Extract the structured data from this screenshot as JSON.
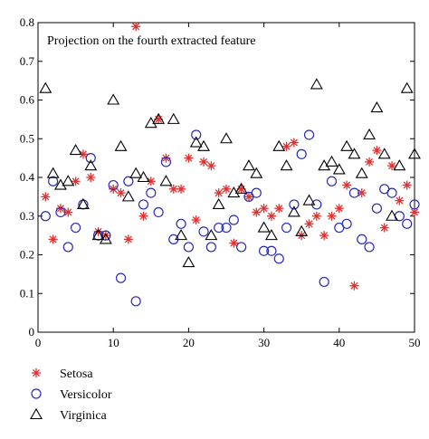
{
  "chart_data": {
    "type": "scatter",
    "title": "Projection on the fourth extracted feature",
    "xlabel": "",
    "ylabel": "",
    "xlim": [
      0,
      50
    ],
    "ylim": [
      0,
      0.8
    ],
    "x_ticks": [
      0,
      10,
      20,
      30,
      40,
      50
    ],
    "y_ticks": [
      0,
      0.1,
      0.2,
      0.3,
      0.4,
      0.5,
      0.6,
      0.7,
      0.8
    ],
    "grid": false,
    "legend_position": "bottom-left, below plot",
    "series": [
      {
        "name": "Setosa",
        "marker": "asterisk",
        "color": "#e03030",
        "x": [
          1,
          2,
          3,
          4,
          5,
          6,
          7,
          8,
          9,
          10,
          11,
          12,
          13,
          14,
          15,
          16,
          17,
          18,
          19,
          20,
          21,
          22,
          23,
          24,
          25,
          26,
          27,
          28,
          29,
          30,
          31,
          32,
          33,
          34,
          35,
          36,
          37,
          38,
          39,
          40,
          41,
          42,
          43,
          44,
          45,
          46,
          47,
          48,
          49,
          50
        ],
        "y": [
          0.35,
          0.24,
          0.32,
          0.31,
          0.39,
          0.46,
          0.4,
          0.26,
          0.25,
          0.37,
          0.36,
          0.24,
          0.79,
          0.3,
          0.39,
          0.55,
          0.45,
          0.37,
          0.37,
          0.45,
          0.29,
          0.44,
          0.43,
          0.36,
          0.37,
          0.23,
          0.37,
          0.35,
          0.31,
          0.32,
          0.3,
          0.32,
          0.48,
          0.49,
          0.25,
          0.28,
          0.3,
          0.25,
          0.3,
          0.32,
          0.38,
          0.12,
          0.36,
          0.44,
          0.47,
          0.27,
          0.43,
          0.34,
          0.38,
          0.31
        ]
      },
      {
        "name": "Versicolor",
        "marker": "circle",
        "color": "#2a2ab8",
        "x": [
          1,
          2,
          3,
          4,
          5,
          6,
          7,
          8,
          9,
          10,
          11,
          12,
          13,
          14,
          15,
          16,
          17,
          18,
          19,
          20,
          21,
          22,
          23,
          24,
          25,
          26,
          27,
          28,
          29,
          30,
          31,
          32,
          33,
          34,
          35,
          36,
          37,
          38,
          39,
          40,
          41,
          42,
          43,
          44,
          45,
          46,
          47,
          48,
          49,
          50
        ],
        "y": [
          0.3,
          0.39,
          0.31,
          0.22,
          0.27,
          0.33,
          0.45,
          0.25,
          0.25,
          0.38,
          0.14,
          0.39,
          0.08,
          0.33,
          0.36,
          0.31,
          0.44,
          0.24,
          0.28,
          0.22,
          0.51,
          0.26,
          0.22,
          0.27,
          0.27,
          0.29,
          0.22,
          0.35,
          0.36,
          0.21,
          0.21,
          0.19,
          0.27,
          0.33,
          0.46,
          0.51,
          0.33,
          0.13,
          0.39,
          0.27,
          0.28,
          0.36,
          0.24,
          0.22,
          0.32,
          0.37,
          0.36,
          0.3,
          0.28,
          0.33
        ]
      },
      {
        "name": "Virginica",
        "marker": "triangle",
        "color": "#000000",
        "x": [
          1,
          2,
          3,
          4,
          5,
          6,
          7,
          8,
          9,
          10,
          11,
          12,
          13,
          14,
          15,
          16,
          17,
          18,
          19,
          20,
          21,
          22,
          23,
          24,
          25,
          26,
          27,
          28,
          29,
          30,
          31,
          32,
          33,
          34,
          35,
          36,
          37,
          38,
          39,
          40,
          41,
          42,
          43,
          44,
          45,
          46,
          47,
          48,
          49,
          50
        ],
        "y": [
          0.63,
          0.41,
          0.38,
          0.39,
          0.47,
          0.33,
          0.43,
          0.25,
          0.24,
          0.6,
          0.48,
          0.35,
          0.41,
          0.4,
          0.54,
          0.55,
          0.39,
          0.55,
          0.25,
          0.18,
          0.49,
          0.48,
          0.25,
          0.33,
          0.5,
          0.36,
          0.37,
          0.43,
          0.41,
          0.27,
          0.25,
          0.48,
          0.43,
          0.31,
          0.26,
          0.34,
          0.64,
          0.43,
          0.44,
          0.42,
          0.48,
          0.46,
          0.41,
          0.51,
          0.58,
          0.46,
          0.3,
          0.43,
          0.63,
          0.46
        ]
      }
    ]
  },
  "legend": {
    "items": [
      {
        "label": "Setosa",
        "marker": "asterisk",
        "color": "#e03030"
      },
      {
        "label": "Versicolor",
        "marker": "circle",
        "color": "#2a2ab8"
      },
      {
        "label": "Virginica",
        "marker": "triangle",
        "color": "#000000"
      }
    ]
  }
}
